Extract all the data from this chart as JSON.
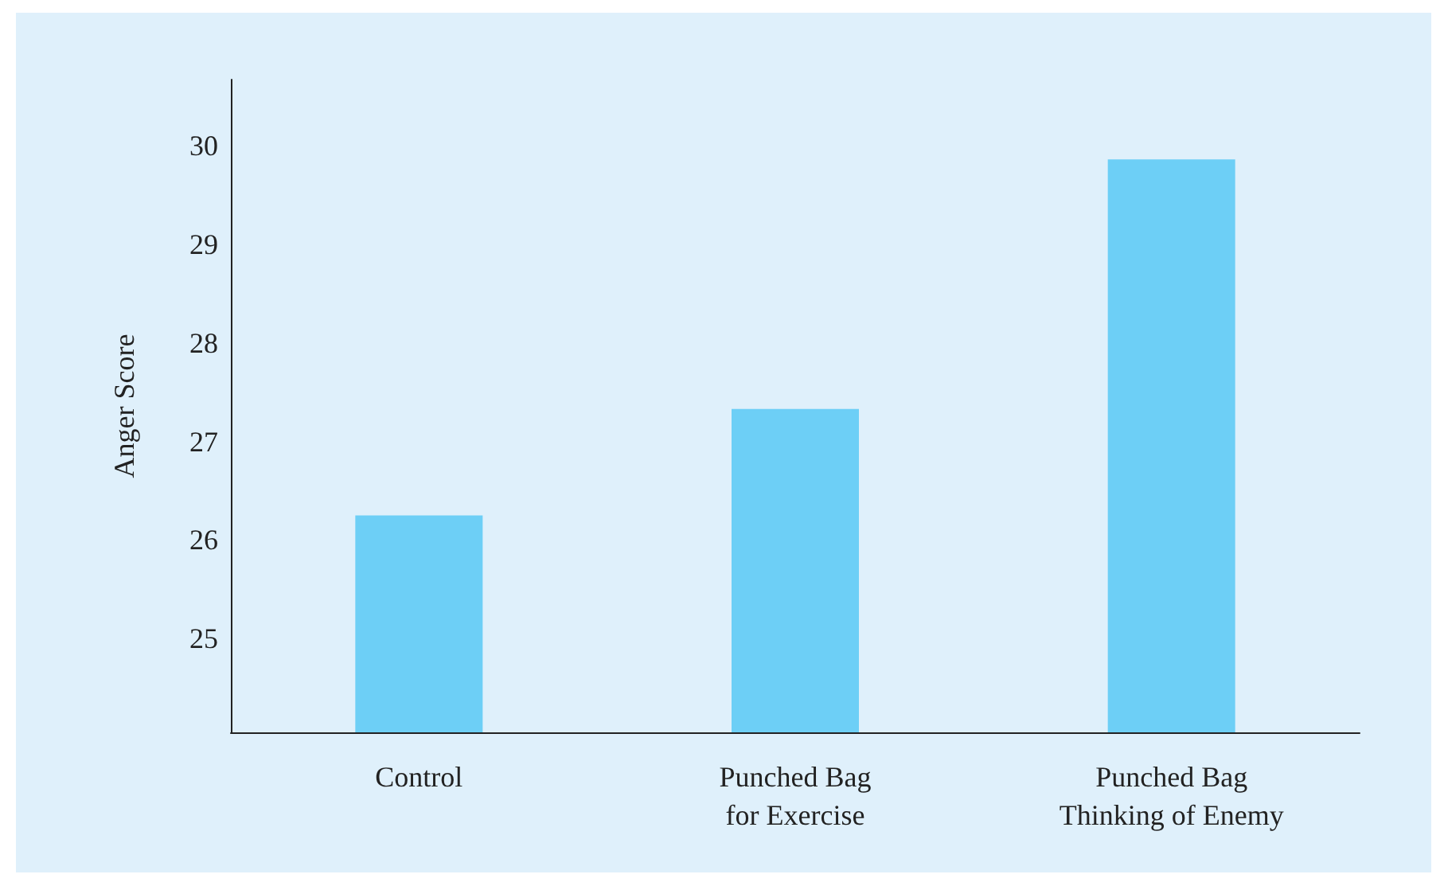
{
  "chart_data": {
    "type": "bar",
    "ylabel": "Anger Score",
    "categories": [
      "Control",
      "Punched Bag for Exercise",
      "Punched Bag Thinking of Enemy"
    ],
    "values": [
      26.25,
      27.33,
      29.86
    ],
    "color": "#6dcff6",
    "ylim": [
      24.05,
      30.67
    ],
    "yticks": [
      25,
      26,
      27,
      28,
      29,
      30
    ],
    "grid": false
  }
}
